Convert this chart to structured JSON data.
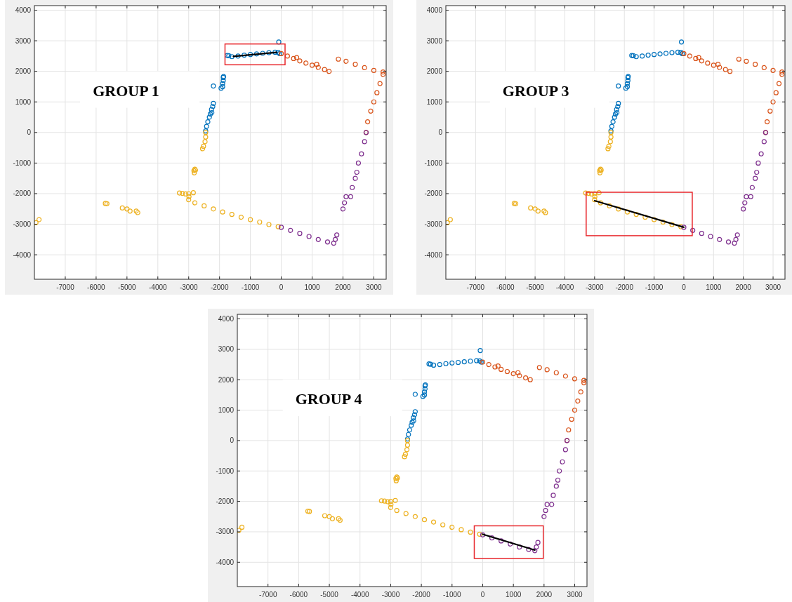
{
  "chart_data": [
    {
      "type": "scatter",
      "title": "GROUP 1",
      "xlim": [
        -8000,
        3400
      ],
      "ylim": [
        -4800,
        4150
      ],
      "xticks": [
        -7000,
        -6000,
        -5000,
        -4000,
        -3000,
        -2000,
        -1000,
        0,
        1000,
        2000,
        3000
      ],
      "yticks": [
        -4000,
        -3000,
        -2000,
        -1000,
        0,
        1000,
        2000,
        3000,
        4000
      ],
      "grid": true,
      "marker": "circle",
      "series": [
        {
          "color": "#0072bd",
          "x": [
            -1750,
            -1700,
            -1600,
            -1400,
            -1200,
            -1000,
            -800,
            -600,
            -400,
            -200,
            -100,
            -50,
            -80,
            -2200,
            -1950,
            -1900,
            -1900,
            -1880,
            -1880,
            -1870,
            -2450,
            -2420,
            -2380,
            -2330,
            -2300,
            -2250,
            -2260,
            -2220,
            -2200
          ],
          "values": [
            2520,
            2510,
            2480,
            2500,
            2530,
            2550,
            2570,
            2590,
            2610,
            2625,
            2620,
            2580,
            2960,
            1520,
            1450,
            1500,
            1600,
            1700,
            1800,
            1830,
            50,
            200,
            350,
            500,
            600,
            650,
            750,
            850,
            950
          ]
        },
        {
          "color": "#d95319",
          "x": [
            0,
            200,
            400,
            600,
            800,
            1000,
            1200,
            1400,
            1550,
            500,
            1150,
            1850,
            2100,
            2400,
            2700,
            3000,
            3300,
            3300,
            3200,
            3100,
            3000,
            2900,
            2800,
            2750
          ],
          "values": [
            2580,
            2500,
            2420,
            2340,
            2270,
            2200,
            2130,
            2060,
            2000,
            2450,
            2230,
            2400,
            2330,
            2230,
            2120,
            2030,
            1980,
            1900,
            1600,
            1300,
            1000,
            700,
            350,
            0
          ]
        },
        {
          "color": "#edb120",
          "x": [
            -2450,
            -2450,
            -2470,
            -2520,
            -2550,
            -2800,
            -2830,
            -2820,
            -2780,
            -3300,
            -3200,
            -3100,
            -2850,
            -3000,
            -2990,
            -3000,
            -2800,
            -2500,
            -2200,
            -1900,
            -1600,
            -1300,
            -1000,
            -700,
            -400,
            -100,
            -7950,
            -7850,
            -5700,
            -5650,
            -5150,
            -5000,
            -4900,
            -4700,
            -4650
          ],
          "values": [
            0,
            -150,
            -300,
            -450,
            -530,
            -1200,
            -1250,
            -1320,
            -1230,
            -1980,
            -1990,
            -2010,
            -1970,
            -2000,
            -2100,
            -2200,
            -2300,
            -2400,
            -2500,
            -2600,
            -2680,
            -2770,
            -2850,
            -2930,
            -3010,
            -3080,
            -2950,
            -2850,
            -2320,
            -2330,
            -2470,
            -2500,
            -2570,
            -2570,
            -2620
          ]
        },
        {
          "color": "#7e2f8e",
          "x": [
            0,
            300,
            600,
            900,
            1200,
            1500,
            1700,
            1750,
            1800,
            2000,
            2050,
            2100,
            2250,
            2300,
            2400,
            2450,
            2500,
            2600,
            2700,
            2750
          ],
          "values": [
            -3100,
            -3200,
            -3300,
            -3400,
            -3500,
            -3580,
            -3620,
            -3500,
            -3350,
            -2500,
            -2300,
            -2100,
            -2100,
            -1800,
            -1500,
            -1300,
            -1000,
            -700,
            -300,
            0
          ]
        },
        {
          "type": "line",
          "marker": "none",
          "color": "#000000",
          "x": [
            -1550,
            -150
          ],
          "values": [
            2490,
            2620
          ]
        }
      ]
    },
    {
      "type": "scatter",
      "title": "GROUP 3",
      "xlim": [
        -8000,
        3400
      ],
      "ylim": [
        -4800,
        4150
      ],
      "xticks": [
        -7000,
        -6000,
        -5000,
        -4000,
        -3000,
        -2000,
        -1000,
        0,
        1000,
        2000,
        3000
      ],
      "yticks": [
        -4000,
        -3000,
        -2000,
        -1000,
        0,
        1000,
        2000,
        3000,
        4000
      ],
      "grid": true,
      "marker": "circle",
      "series": [
        {
          "color": "#0072bd",
          "x": [
            -1750,
            -1700,
            -1600,
            -1400,
            -1200,
            -1000,
            -800,
            -600,
            -400,
            -200,
            -100,
            -50,
            -80,
            -2200,
            -1950,
            -1900,
            -1900,
            -1880,
            -1880,
            -1870,
            -2450,
            -2420,
            -2380,
            -2330,
            -2300,
            -2250,
            -2260,
            -2220,
            -2200
          ],
          "values": [
            2520,
            2510,
            2480,
            2500,
            2530,
            2550,
            2570,
            2590,
            2610,
            2625,
            2620,
            2580,
            2960,
            1520,
            1450,
            1500,
            1600,
            1700,
            1800,
            1830,
            50,
            200,
            350,
            500,
            600,
            650,
            750,
            850,
            950
          ]
        },
        {
          "color": "#d95319",
          "x": [
            0,
            200,
            400,
            600,
            800,
            1000,
            1200,
            1400,
            1550,
            500,
            1150,
            1850,
            2100,
            2400,
            2700,
            3000,
            3300,
            3300,
            3200,
            3100,
            3000,
            2900,
            2800,
            2750
          ],
          "values": [
            2580,
            2500,
            2420,
            2340,
            2270,
            2200,
            2130,
            2060,
            2000,
            2450,
            2230,
            2400,
            2330,
            2230,
            2120,
            2030,
            1980,
            1900,
            1600,
            1300,
            1000,
            700,
            350,
            0
          ]
        },
        {
          "color": "#edb120",
          "x": [
            -2450,
            -2450,
            -2470,
            -2520,
            -2550,
            -2800,
            -2830,
            -2820,
            -2780,
            -3300,
            -3200,
            -3100,
            -2850,
            -3000,
            -2990,
            -3000,
            -2800,
            -2500,
            -2200,
            -1900,
            -1600,
            -1300,
            -1000,
            -700,
            -400,
            -100,
            -7950,
            -7850,
            -5700,
            -5650,
            -5150,
            -5000,
            -4900,
            -4700,
            -4650
          ],
          "values": [
            0,
            -150,
            -300,
            -450,
            -530,
            -1200,
            -1250,
            -1320,
            -1230,
            -1980,
            -1990,
            -2010,
            -1970,
            -2000,
            -2100,
            -2200,
            -2300,
            -2400,
            -2500,
            -2600,
            -2680,
            -2770,
            -2850,
            -2930,
            -3010,
            -3080,
            -2950,
            -2850,
            -2320,
            -2330,
            -2470,
            -2500,
            -2570,
            -2570,
            -2620
          ]
        },
        {
          "color": "#7e2f8e",
          "x": [
            0,
            300,
            600,
            900,
            1200,
            1500,
            1700,
            1750,
            1800,
            2000,
            2050,
            2100,
            2250,
            2300,
            2400,
            2450,
            2500,
            2600,
            2700,
            2750
          ],
          "values": [
            -3100,
            -3200,
            -3300,
            -3400,
            -3500,
            -3580,
            -3620,
            -3500,
            -3350,
            -2500,
            -2300,
            -2100,
            -2100,
            -1800,
            -1500,
            -1300,
            -1000,
            -700,
            -300,
            0
          ]
        },
        {
          "type": "line",
          "marker": "none",
          "color": "#000000",
          "x": [
            -3000,
            0
          ],
          "values": [
            -2230,
            -3100
          ]
        }
      ]
    },
    {
      "type": "scatter",
      "title": "GROUP 4",
      "xlim": [
        -8000,
        3400
      ],
      "ylim": [
        -4800,
        4150
      ],
      "xticks": [
        -7000,
        -6000,
        -5000,
        -4000,
        -3000,
        -2000,
        -1000,
        0,
        1000,
        2000,
        3000
      ],
      "yticks": [
        -4000,
        -3000,
        -2000,
        -1000,
        0,
        1000,
        2000,
        3000,
        4000
      ],
      "grid": true,
      "marker": "circle",
      "series": [
        {
          "color": "#0072bd",
          "x": [
            -1750,
            -1700,
            -1600,
            -1400,
            -1200,
            -1000,
            -800,
            -600,
            -400,
            -200,
            -100,
            -50,
            -80,
            -2200,
            -1950,
            -1900,
            -1900,
            -1880,
            -1880,
            -1870,
            -2450,
            -2420,
            -2380,
            -2330,
            -2300,
            -2250,
            -2260,
            -2220,
            -2200
          ],
          "values": [
            2520,
            2510,
            2480,
            2500,
            2530,
            2550,
            2570,
            2590,
            2610,
            2625,
            2620,
            2580,
            2960,
            1520,
            1450,
            1500,
            1600,
            1700,
            1800,
            1830,
            50,
            200,
            350,
            500,
            600,
            650,
            750,
            850,
            950
          ]
        },
        {
          "color": "#d95319",
          "x": [
            0,
            200,
            400,
            600,
            800,
            1000,
            1200,
            1400,
            1550,
            500,
            1150,
            1850,
            2100,
            2400,
            2700,
            3000,
            3300,
            3300,
            3200,
            3100,
            3000,
            2900,
            2800,
            2750
          ],
          "values": [
            2580,
            2500,
            2420,
            2340,
            2270,
            2200,
            2130,
            2060,
            2000,
            2450,
            2230,
            2400,
            2330,
            2230,
            2120,
            2030,
            1980,
            1900,
            1600,
            1300,
            1000,
            700,
            350,
            0
          ]
        },
        {
          "color": "#edb120",
          "x": [
            -2450,
            -2450,
            -2470,
            -2520,
            -2550,
            -2800,
            -2830,
            -2820,
            -2780,
            -3300,
            -3200,
            -3100,
            -2850,
            -3000,
            -2990,
            -3000,
            -2800,
            -2500,
            -2200,
            -1900,
            -1600,
            -1300,
            -1000,
            -700,
            -400,
            -100,
            -7950,
            -7850,
            -5700,
            -5650,
            -5150,
            -5000,
            -4900,
            -4700,
            -4650
          ],
          "values": [
            0,
            -150,
            -300,
            -450,
            -530,
            -1200,
            -1250,
            -1320,
            -1230,
            -1980,
            -1990,
            -2010,
            -1970,
            -2000,
            -2100,
            -2200,
            -2300,
            -2400,
            -2500,
            -2600,
            -2680,
            -2770,
            -2850,
            -2930,
            -3010,
            -3080,
            -2950,
            -2850,
            -2320,
            -2330,
            -2470,
            -2500,
            -2570,
            -2570,
            -2620
          ]
        },
        {
          "color": "#7e2f8e",
          "x": [
            0,
            300,
            600,
            900,
            1200,
            1500,
            1700,
            1750,
            1800,
            2000,
            2050,
            2100,
            2250,
            2300,
            2400,
            2450,
            2500,
            2600,
            2700,
            2750
          ],
          "values": [
            -3100,
            -3200,
            -3300,
            -3400,
            -3500,
            -3580,
            -3620,
            -3500,
            -3350,
            -2500,
            -2300,
            -2100,
            -2100,
            -1800,
            -1500,
            -1300,
            -1000,
            -700,
            -300,
            0
          ]
        },
        {
          "type": "line",
          "marker": "none",
          "color": "#000000",
          "x": [
            0,
            1700
          ],
          "values": [
            -3080,
            -3600
          ]
        }
      ]
    }
  ]
}
